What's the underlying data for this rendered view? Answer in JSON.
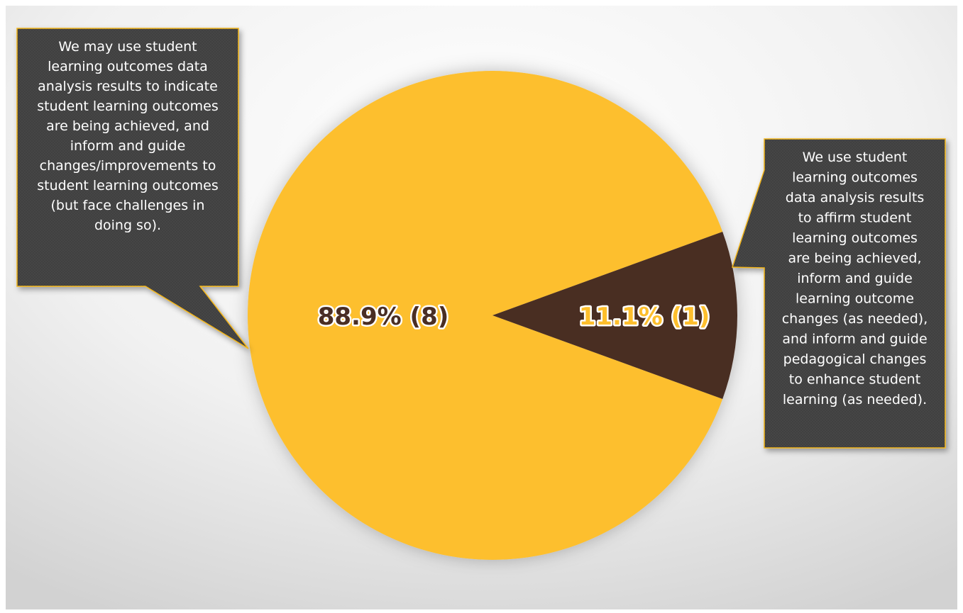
{
  "colors": {
    "slice_major": "#FDBF2D",
    "slice_minor": "#4A2E24",
    "callout_bg": "#3F3F3F",
    "callout_border": "#F2B51A"
  },
  "chart_data": {
    "type": "pie",
    "slices": [
      {
        "value": 8,
        "percent": 88.9,
        "label": "88.9% (8)",
        "color": "#FDBF2D",
        "category_lines": [
          "We may use student",
          "learning outcomes data",
          "analysis results to indicate",
          "student learning outcomes",
          "are being achieved, and",
          "inform and guide",
          "changes/improvements to",
          "student learning outcomes",
          "(but face challenges in",
          "doing so)."
        ]
      },
      {
        "value": 1,
        "percent": 11.1,
        "label": "11.1% (1)",
        "color": "#4A2E24",
        "category_lines": [
          "We use student",
          "learning outcomes",
          "data analysis results",
          "to affirm student",
          "learning outcomes",
          "are being achieved,",
          "inform and guide",
          "learning outcome",
          "changes (as needed),",
          "and inform and guide",
          "pedagogical changes",
          "to enhance student",
          "learning (as needed)."
        ]
      }
    ]
  }
}
